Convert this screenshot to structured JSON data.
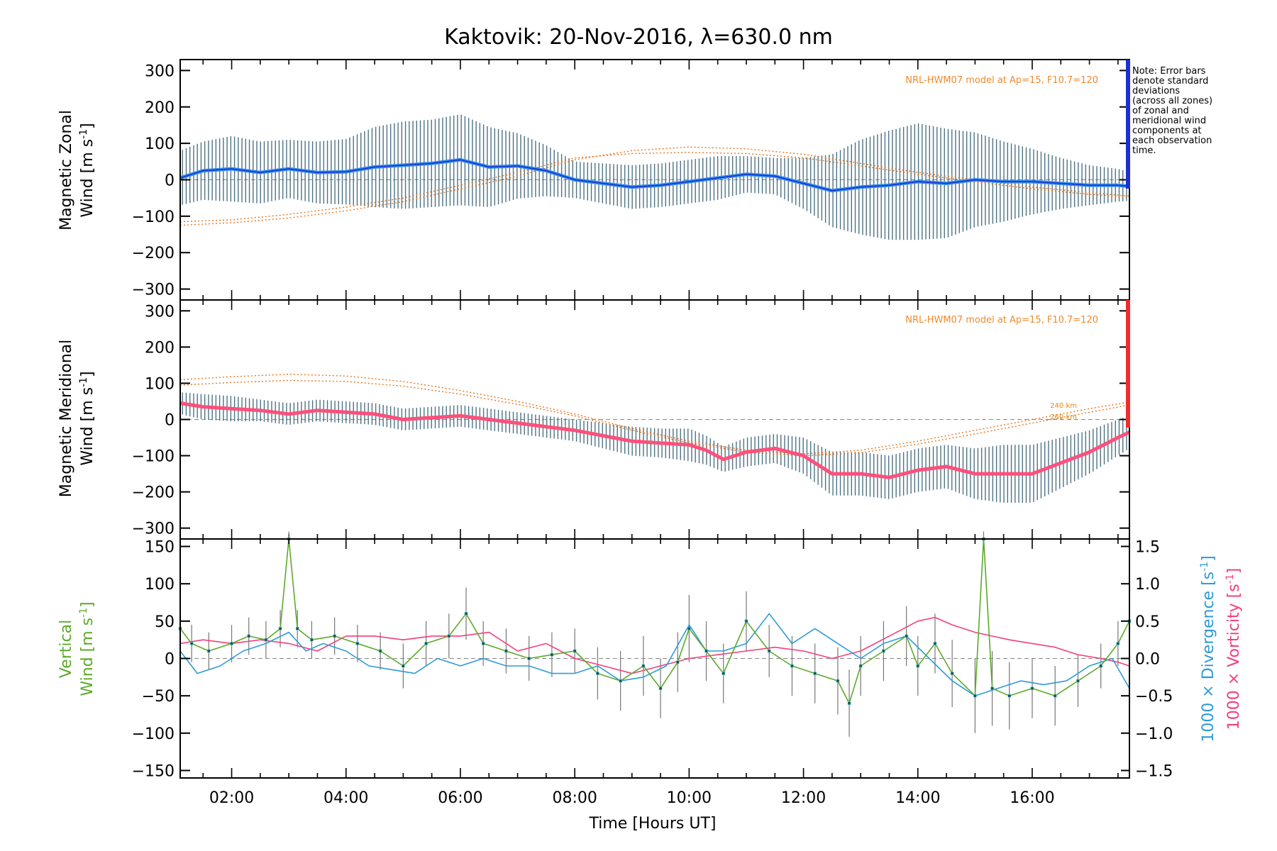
{
  "chart_data": {
    "type": "line",
    "title": "Kaktovik: 20-Nov-2016, λ=630.0 nm",
    "xlabel": "Time [Hours UT]",
    "xlim": [
      1.1,
      17.7
    ],
    "x_ticks": [
      "02:00",
      "04:00",
      "06:00",
      "08:00",
      "10:00",
      "12:00",
      "14:00",
      "16:00"
    ],
    "x_tick_values": [
      2,
      4,
      6,
      8,
      10,
      12,
      14,
      16
    ],
    "panels": [
      {
        "id": "zonal",
        "ylabel_line1": "Magnetic Zonal",
        "ylabel_line2": "Wind [m s",
        "ylabel_sup": "-1",
        "ylabel_close": "]",
        "ylim": [
          -330,
          330
        ],
        "y_ticks": [
          -300,
          -200,
          -100,
          0,
          100,
          200,
          300
        ],
        "model_label": "NRL-HWM07 model at Ap=15, F10.7=120",
        "series": [
          {
            "name": "mean zonal wind",
            "x": [
              1.1,
              1.5,
              2.0,
              2.5,
              3.0,
              3.5,
              4.0,
              4.5,
              5.0,
              5.5,
              6.0,
              6.5,
              7.0,
              7.5,
              8.0,
              8.5,
              9.0,
              9.5,
              10.0,
              10.5,
              11.0,
              11.5,
              12.0,
              12.5,
              13.0,
              13.5,
              14.0,
              14.5,
              15.0,
              15.5,
              16.0,
              16.5,
              17.0,
              17.5,
              17.7
            ],
            "y": [
              5,
              25,
              30,
              20,
              30,
              20,
              22,
              35,
              40,
              45,
              55,
              35,
              38,
              25,
              0,
              -10,
              -20,
              -15,
              -5,
              5,
              15,
              10,
              -10,
              -30,
              -20,
              -15,
              -5,
              -10,
              0,
              -5,
              -5,
              -10,
              -15,
              -15,
              -18
            ],
            "error": [
              75,
              80,
              90,
              85,
              80,
              85,
              90,
              110,
              120,
              120,
              125,
              110,
              90,
              70,
              50,
              55,
              60,
              60,
              60,
              60,
              50,
              50,
              70,
              100,
              130,
              150,
              160,
              150,
              130,
              110,
              90,
              70,
              55,
              45,
              40
            ]
          },
          {
            "name": "model 240 km",
            "x": [
              1.1,
              2,
              3,
              4,
              5,
              6,
              7,
              8,
              9,
              10,
              11,
              12,
              13,
              14,
              15,
              16,
              17,
              17.7
            ],
            "y": [
              -125,
              -118,
              -105,
              -85,
              -60,
              -25,
              10,
              55,
              80,
              90,
              85,
              70,
              45,
              20,
              0,
              -20,
              -35,
              -45
            ]
          },
          {
            "name": "model 260 km",
            "x": [
              1.1,
              2,
              3,
              4,
              5,
              6,
              7,
              8,
              9,
              10,
              11,
              12,
              13,
              14,
              15,
              16,
              17,
              17.7
            ],
            "y": [
              -115,
              -110,
              -95,
              -75,
              -50,
              -15,
              20,
              60,
              72,
              75,
              72,
              60,
              38,
              15,
              -5,
              -25,
              -40,
              -48
            ]
          }
        ]
      },
      {
        "id": "meridional",
        "ylabel_line1": "Magnetic Meridional",
        "ylabel_line2": "Wind [m s",
        "ylabel_sup": "-1",
        "ylabel_close": "]",
        "ylim": [
          -330,
          330
        ],
        "y_ticks": [
          -300,
          -200,
          -100,
          0,
          100,
          200,
          300
        ],
        "model_label": "NRL-HWM07 model at Ap=15, F10.7=120",
        "alt_labels": [
          "240 km",
          "260 km"
        ],
        "series": [
          {
            "name": "mean meridional wind",
            "x": [
              1.1,
              1.5,
              2.0,
              2.5,
              3.0,
              3.5,
              4.0,
              4.5,
              5.0,
              5.5,
              6.0,
              6.5,
              7.0,
              7.5,
              8.0,
              8.5,
              9.0,
              9.5,
              10.0,
              10.3,
              10.6,
              11.0,
              11.5,
              12.0,
              12.5,
              13.0,
              13.5,
              14.0,
              14.5,
              15.0,
              15.5,
              16.0,
              16.5,
              17.0,
              17.5,
              17.7
            ],
            "y": [
              45,
              35,
              30,
              25,
              15,
              25,
              20,
              15,
              0,
              5,
              10,
              0,
              -10,
              -20,
              -30,
              -45,
              -60,
              -65,
              -70,
              -85,
              -110,
              -90,
              -80,
              -100,
              -150,
              -150,
              -160,
              -140,
              -130,
              -150,
              -150,
              -150,
              -120,
              -90,
              -50,
              -35
            ],
            "error": [
              30,
              35,
              35,
              30,
              30,
              30,
              30,
              30,
              30,
              30,
              30,
              30,
              30,
              30,
              30,
              35,
              40,
              40,
              45,
              40,
              35,
              40,
              40,
              50,
              60,
              60,
              60,
              60,
              60,
              70,
              80,
              80,
              70,
              60,
              50,
              45
            ]
          },
          {
            "name": "model 240 km",
            "x": [
              1.1,
              2,
              3,
              4,
              5,
              6,
              7,
              8,
              9,
              10,
              11,
              12,
              13,
              14,
              15,
              16,
              17,
              17.7
            ],
            "y": [
              110,
              118,
              125,
              120,
              105,
              80,
              50,
              15,
              -25,
              -60,
              -85,
              -95,
              -85,
              -60,
              -30,
              0,
              30,
              48
            ]
          },
          {
            "name": "model 260 km",
            "x": [
              1.1,
              2,
              3,
              4,
              5,
              6,
              7,
              8,
              9,
              10,
              11,
              12,
              13,
              14,
              15,
              16,
              17,
              17.7
            ],
            "y": [
              95,
              102,
              108,
              105,
              92,
              70,
              42,
              10,
              -30,
              -65,
              -90,
              -100,
              -92,
              -68,
              -40,
              -10,
              20,
              40
            ]
          }
        ]
      },
      {
        "id": "vertical",
        "ylabel_line1": "Vertical",
        "ylabel_line2": "Wind [m s",
        "ylabel_sup": "-1",
        "ylabel_close": "]",
        "ylim": [
          -160,
          160
        ],
        "y_ticks": [
          -150,
          -100,
          -50,
          0,
          50,
          100,
          150
        ],
        "y2lim": [
          -1.6,
          1.6
        ],
        "y2_ticks": [
          -1.5,
          -1.0,
          -0.5,
          0.0,
          0.5,
          1.0,
          1.5
        ],
        "y2_labels": [
          "−1.5",
          "−1.0",
          "−0.5",
          "0.0",
          "0.5",
          "1.0",
          "1.5"
        ],
        "y2label_div": "1000 × Divergence [s",
        "y2label_vort": "1000 × Vorticity [s",
        "y2label_sup": "-1",
        "y2label_close": "]",
        "series": [
          {
            "name": "vertical wind",
            "x": [
              1.1,
              1.3,
              1.6,
              2.0,
              2.3,
              2.6,
              2.85,
              3.0,
              3.15,
              3.4,
              3.8,
              4.2,
              4.6,
              5.0,
              5.4,
              5.8,
              6.1,
              6.4,
              6.8,
              7.2,
              7.6,
              8.0,
              8.4,
              8.8,
              9.2,
              9.5,
              9.8,
              10.0,
              10.3,
              10.6,
              11.0,
              11.4,
              11.8,
              12.2,
              12.6,
              12.8,
              13.0,
              13.4,
              13.8,
              14.0,
              14.3,
              14.6,
              15.0,
              15.15,
              15.3,
              15.6,
              16.0,
              16.4,
              16.8,
              17.2,
              17.5,
              17.7
            ],
            "y": [
              40,
              20,
              10,
              20,
              30,
              25,
              40,
              160,
              40,
              25,
              30,
              20,
              10,
              -10,
              20,
              30,
              60,
              20,
              10,
              0,
              5,
              10,
              -20,
              -30,
              -10,
              -40,
              -5,
              40,
              10,
              -20,
              50,
              10,
              -10,
              -20,
              -30,
              -60,
              -10,
              10,
              30,
              -10,
              20,
              -20,
              -50,
              160,
              -40,
              -50,
              -40,
              -50,
              -30,
              -10,
              20,
              50
            ],
            "error": [
              30,
              25,
              25,
              25,
              25,
              25,
              25,
              10,
              25,
              25,
              25,
              25,
              25,
              30,
              30,
              30,
              35,
              30,
              30,
              30,
              30,
              30,
              35,
              40,
              40,
              40,
              40,
              45,
              40,
              40,
              40,
              35,
              40,
              40,
              45,
              45,
              40,
              40,
              40,
              40,
              40,
              45,
              50,
              10,
              50,
              45,
              40,
              40,
              35,
              30,
              30,
              30
            ]
          },
          {
            "name": "divergence",
            "x": [
              1.1,
              1.4,
              1.8,
              2.2,
              2.6,
              3.0,
              3.3,
              3.6,
              4.0,
              4.4,
              4.8,
              5.2,
              5.6,
              6.0,
              6.4,
              6.8,
              7.2,
              7.6,
              8.0,
              8.4,
              8.8,
              9.2,
              9.6,
              10.0,
              10.3,
              10.6,
              11.0,
              11.4,
              11.8,
              12.2,
              12.6,
              13.0,
              13.4,
              13.8,
              14.2,
              14.6,
              15.0,
              15.4,
              15.8,
              16.2,
              16.6,
              17.0,
              17.4,
              17.7
            ],
            "y": [
              0.1,
              -0.2,
              -0.1,
              0.1,
              0.2,
              0.35,
              0.1,
              0.2,
              0.1,
              -0.1,
              -0.15,
              -0.2,
              0.0,
              -0.1,
              0.0,
              -0.1,
              -0.1,
              -0.2,
              -0.2,
              -0.1,
              -0.3,
              -0.25,
              -0.1,
              0.45,
              0.1,
              0.1,
              0.2,
              0.6,
              0.2,
              0.4,
              0.2,
              0.0,
              0.2,
              0.3,
              0.0,
              -0.3,
              -0.5,
              -0.4,
              -0.3,
              -0.35,
              -0.3,
              -0.1,
              0.0,
              -0.4
            ]
          },
          {
            "name": "vorticity",
            "x": [
              1.1,
              1.5,
              2.0,
              2.5,
              3.0,
              3.5,
              4.0,
              4.5,
              5.0,
              5.5,
              6.0,
              6.5,
              7.0,
              7.5,
              8.0,
              8.5,
              9.0,
              9.5,
              10.0,
              10.5,
              11.0,
              11.5,
              12.0,
              12.5,
              13.0,
              13.5,
              14.0,
              14.3,
              14.6,
              15.0,
              15.3,
              15.6,
              16.0,
              16.4,
              16.8,
              17.2,
              17.5,
              17.7
            ],
            "y": [
              0.2,
              0.25,
              0.2,
              0.25,
              0.2,
              0.1,
              0.3,
              0.3,
              0.25,
              0.3,
              0.3,
              0.35,
              0.1,
              0.2,
              0.0,
              -0.1,
              -0.2,
              -0.1,
              0.0,
              0.05,
              0.1,
              0.15,
              0.1,
              0.0,
              0.1,
              0.3,
              0.5,
              0.55,
              0.45,
              0.35,
              0.3,
              0.25,
              0.2,
              0.15,
              0.05,
              0.0,
              -0.05,
              -0.1
            ]
          }
        ]
      }
    ],
    "note": [
      "Note: Error bars",
      "denote standard",
      "deviations",
      "(across all zones)",
      "of zonal and",
      "meridional wind",
      "components at",
      "each observation",
      "time."
    ]
  },
  "colors": {
    "zonal": "#3a8ee8",
    "zonal_dark": "#0a2fd8",
    "meridional": "#ff4f7b",
    "errorbar": "#2e5a6e",
    "model": "#e8741a",
    "vertical": "#5caa2a",
    "divergence": "#2e9bd6",
    "vorticity": "#f2407a",
    "scatter": "#a79cd9",
    "sidebar_blue": "#1d2fd0",
    "sidebar_red": "#ef2d2d"
  }
}
